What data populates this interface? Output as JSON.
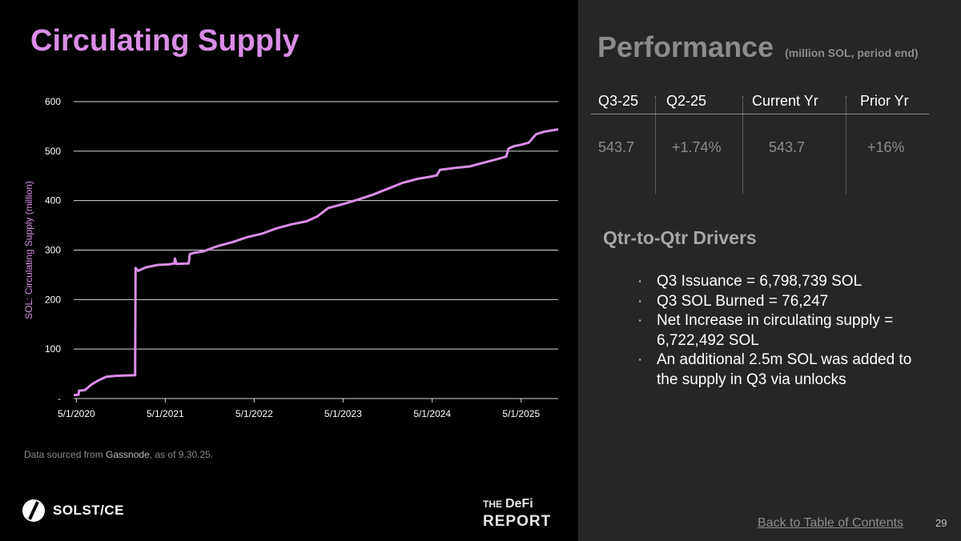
{
  "left_title": "Circulating Supply",
  "source": {
    "prefix": "Data sourced from ",
    "name": "Gassnode",
    "suffix": ", as of 9.30.25."
  },
  "logo": {
    "text": "SOLST/CE"
  },
  "defi_report": {
    "line1_small": "THE",
    "line1_big": "DeFi",
    "line2": "REPORT"
  },
  "performance": {
    "title": "Performance",
    "subtitle": "(million SOL, period end)",
    "headers": [
      "Q3-25",
      "Q2-25",
      "Current Yr",
      "Prior Yr"
    ],
    "values": [
      "543.7",
      "+1.74%",
      "543.7",
      "+16%"
    ]
  },
  "drivers": {
    "title": "Qtr-to-Qtr Drivers",
    "bullet_glyph": "·",
    "items": [
      "Q3 Issuance = 6,798,739 SOL",
      "Q3 SOL Burned = 76,247",
      "Net Increase in circulating supply = 6,722,492 SOL",
      "An additional 2.5m SOL was added to the supply in Q3 via unlocks"
    ]
  },
  "footer": {
    "toc_link": "Back to Table of Contents",
    "page_number": "29"
  },
  "colors": {
    "line": "#d98ee6",
    "title": "#d98ee6",
    "right_bg": "#262626",
    "grid": "#d9d9d9"
  },
  "chart_data": {
    "type": "line",
    "ylabel": "SOL: Circulating Supply (million)",
    "xlabel": "",
    "ylim": [
      0,
      600
    ],
    "yticks": [
      {
        "v": 0,
        "label": "-"
      },
      {
        "v": 100,
        "label": "100"
      },
      {
        "v": 200,
        "label": "200"
      },
      {
        "v": 300,
        "label": "300"
      },
      {
        "v": 400,
        "label": "400"
      },
      {
        "v": 500,
        "label": "500"
      },
      {
        "v": 600,
        "label": "600"
      }
    ],
    "xlim": [
      "2020-04-20",
      "2025-09-30"
    ],
    "xticks": [
      {
        "date": "2020-05-01",
        "label": "5/1/2020"
      },
      {
        "date": "2021-05-01",
        "label": "5/1/2021"
      },
      {
        "date": "2022-05-01",
        "label": "5/1/2022"
      },
      {
        "date": "2023-05-01",
        "label": "5/1/2023"
      },
      {
        "date": "2024-05-01",
        "label": "5/1/2024"
      },
      {
        "date": "2025-05-01",
        "label": "5/1/2025"
      }
    ],
    "grid": "horizontal",
    "legend": "none",
    "series": [
      {
        "points": [
          [
            "2020-04-20",
            7
          ],
          [
            "2020-05-10",
            8
          ],
          [
            "2020-05-12",
            16
          ],
          [
            "2020-06-05",
            17
          ],
          [
            "2020-07-01",
            28
          ],
          [
            "2020-08-01",
            37
          ],
          [
            "2020-09-01",
            44
          ],
          [
            "2020-10-10",
            46
          ],
          [
            "2020-12-20",
            47
          ],
          [
            "2020-12-28",
            47
          ],
          [
            "2020-12-30",
            264
          ],
          [
            "2021-01-10",
            258
          ],
          [
            "2021-02-10",
            265
          ],
          [
            "2021-04-01",
            270
          ],
          [
            "2021-05-15",
            271
          ],
          [
            "2021-06-08",
            273
          ],
          [
            "2021-06-10",
            283
          ],
          [
            "2021-06-15",
            272
          ],
          [
            "2021-08-05",
            273
          ],
          [
            "2021-08-10",
            292
          ],
          [
            "2021-09-01",
            295
          ],
          [
            "2021-10-01",
            297
          ],
          [
            "2021-12-01",
            308
          ],
          [
            "2022-02-01",
            316
          ],
          [
            "2022-04-01",
            326
          ],
          [
            "2022-06-01",
            333
          ],
          [
            "2022-08-01",
            344
          ],
          [
            "2022-10-01",
            352
          ],
          [
            "2022-12-01",
            358
          ],
          [
            "2023-01-15",
            368
          ],
          [
            "2023-03-01",
            385
          ],
          [
            "2023-05-01",
            393
          ],
          [
            "2023-07-01",
            402
          ],
          [
            "2023-09-01",
            412
          ],
          [
            "2023-11-01",
            424
          ],
          [
            "2024-01-01",
            436
          ],
          [
            "2024-03-01",
            444
          ],
          [
            "2024-04-20",
            448
          ],
          [
            "2024-05-20",
            451
          ],
          [
            "2024-06-01",
            462
          ],
          [
            "2024-08-01",
            466
          ],
          [
            "2024-10-01",
            469
          ],
          [
            "2024-12-01",
            477
          ],
          [
            "2025-02-01",
            485
          ],
          [
            "2025-03-01",
            489
          ],
          [
            "2025-03-10",
            505
          ],
          [
            "2025-04-01",
            510
          ],
          [
            "2025-05-01",
            513
          ],
          [
            "2025-06-01",
            517
          ],
          [
            "2025-07-01",
            534
          ],
          [
            "2025-08-01",
            539
          ],
          [
            "2025-09-30",
            544
          ]
        ]
      }
    ]
  }
}
